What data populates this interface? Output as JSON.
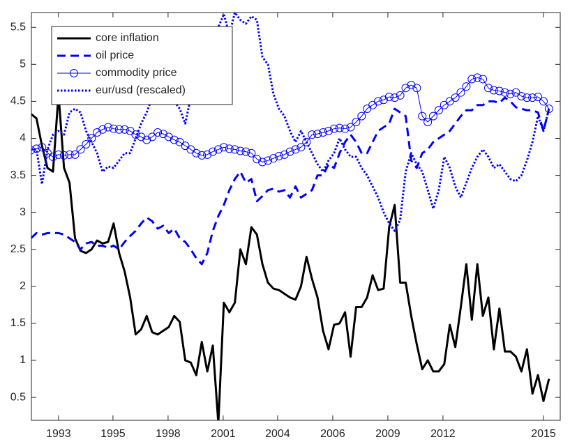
{
  "chart_data": {
    "type": "line",
    "x": [
      1991.75,
      1992,
      1992.25,
      1992.5,
      1992.75,
      1993,
      1993.25,
      1993.5,
      1993.75,
      1994,
      1994.25,
      1994.5,
      1994.75,
      1995,
      1995.25,
      1995.5,
      1995.75,
      1996,
      1996.25,
      1996.5,
      1996.75,
      1997,
      1997.25,
      1997.5,
      1997.75,
      1998,
      1998.25,
      1998.5,
      1998.75,
      1999,
      1999.25,
      1999.5,
      1999.75,
      2000,
      2000.25,
      2000.5,
      2000.75,
      2001,
      2001.25,
      2001.5,
      2001.75,
      2002,
      2002.25,
      2002.5,
      2002.75,
      2003,
      2003.25,
      2003.5,
      2003.75,
      2004,
      2004.25,
      2004.5,
      2004.75,
      2005,
      2005.25,
      2005.5,
      2005.75,
      2006,
      2006.25,
      2006.5,
      2006.75,
      2007,
      2007.25,
      2007.5,
      2007.75,
      2008,
      2008.25,
      2008.5,
      2008.75,
      2009,
      2009.25,
      2009.5,
      2009.75,
      2010,
      2010.25,
      2010.5,
      2010.75,
      2011,
      2011.25,
      2011.5,
      2011.75,
      2012,
      2012.25,
      2012.5,
      2012.75,
      2013,
      2013.25,
      2013.5,
      2013.75,
      2014,
      2014.25,
      2014.5,
      2014.75,
      2015,
      2015.25
    ],
    "series": [
      {
        "name": "core inflation",
        "color": "#000000",
        "line_style": "solid",
        "line_width": 3,
        "values": [
          4.33,
          4.27,
          3.9,
          3.6,
          3.55,
          4.6,
          3.6,
          3.4,
          2.65,
          2.48,
          2.45,
          2.5,
          2.62,
          2.58,
          2.6,
          2.85,
          2.45,
          2.2,
          1.85,
          1.35,
          1.42,
          1.6,
          1.38,
          1.35,
          1.4,
          1.45,
          1.6,
          1.52,
          1.0,
          0.97,
          0.8,
          1.25,
          0.85,
          1.2,
          0.15,
          1.78,
          1.65,
          1.78,
          2.5,
          2.3,
          2.8,
          2.7,
          2.3,
          2.05,
          1.97,
          1.95,
          1.9,
          1.85,
          1.82,
          2.0,
          2.4,
          2.1,
          1.85,
          1.4,
          1.15,
          1.48,
          1.5,
          1.65,
          1.05,
          1.72,
          1.72,
          1.85,
          2.15,
          1.95,
          1.97,
          2.8,
          3.1,
          2.05,
          2.05,
          1.6,
          1.22,
          0.88,
          1.0,
          0.85,
          0.85,
          0.95,
          1.48,
          1.18,
          1.72,
          2.3,
          1.55,
          2.3,
          1.6,
          1.85,
          1.15,
          1.7,
          1.12,
          1.12,
          1.05,
          0.85,
          1.15,
          0.55,
          0.8,
          0.45,
          0.75
        ]
      },
      {
        "name": "oil price",
        "color": "#0000ff",
        "line_style": "dashed",
        "line_width": 3,
        "values": [
          2.65,
          2.72,
          2.7,
          2.72,
          2.72,
          2.72,
          2.7,
          2.65,
          2.6,
          2.5,
          2.58,
          2.6,
          2.55,
          2.55,
          2.52,
          2.55,
          2.5,
          2.6,
          2.68,
          2.75,
          2.85,
          2.93,
          2.88,
          2.78,
          2.82,
          2.72,
          2.78,
          2.65,
          2.6,
          2.5,
          2.38,
          2.3,
          2.45,
          2.75,
          2.95,
          3.1,
          3.3,
          3.45,
          3.55,
          3.4,
          3.45,
          3.15,
          3.22,
          3.3,
          3.32,
          3.28,
          3.3,
          3.2,
          3.35,
          3.2,
          3.25,
          3.3,
          3.5,
          3.5,
          3.65,
          3.6,
          3.8,
          3.95,
          4.05,
          3.95,
          3.8,
          3.8,
          3.95,
          4.1,
          4.15,
          4.2,
          4.4,
          4.35,
          4.3,
          3.7,
          3.6,
          3.8,
          3.85,
          3.95,
          4.0,
          4.05,
          4.1,
          4.2,
          4.3,
          4.38,
          4.38,
          4.45,
          4.45,
          4.5,
          4.5,
          4.48,
          4.55,
          4.5,
          4.42,
          4.4,
          4.38,
          4.38,
          4.35,
          4.1,
          4.4
        ]
      },
      {
        "name": "commodity price",
        "color": "#0000ff",
        "line_style": "solid",
        "line_width": 1,
        "marker": "o",
        "values": [
          3.84,
          3.86,
          3.88,
          3.8,
          3.75,
          3.78,
          3.77,
          3.78,
          3.78,
          3.85,
          3.92,
          4.0,
          4.08,
          4.12,
          4.15,
          4.13,
          4.12,
          4.12,
          4.1,
          4.05,
          4.02,
          3.98,
          4.02,
          4.08,
          4.06,
          4.02,
          3.98,
          3.95,
          3.9,
          3.85,
          3.8,
          3.77,
          3.78,
          3.82,
          3.85,
          3.88,
          3.86,
          3.85,
          3.83,
          3.82,
          3.8,
          3.72,
          3.68,
          3.7,
          3.73,
          3.76,
          3.78,
          3.82,
          3.85,
          3.88,
          3.95,
          4.05,
          4.06,
          4.08,
          4.1,
          4.13,
          4.14,
          4.13,
          4.15,
          4.22,
          4.3,
          4.4,
          4.45,
          4.5,
          4.52,
          4.56,
          4.55,
          4.58,
          4.68,
          4.72,
          4.68,
          4.3,
          4.22,
          4.3,
          4.38,
          4.45,
          4.5,
          4.55,
          4.62,
          4.7,
          4.8,
          4.82,
          4.8,
          4.68,
          4.65,
          4.64,
          4.62,
          4.6,
          4.62,
          4.57,
          4.55,
          4.55,
          4.56,
          4.5,
          4.4
        ]
      },
      {
        "name": "eur/usd (rescaled)",
        "color": "#0000ff",
        "line_style": "dotted",
        "line_width": 3,
        "values": [
          3.85,
          3.85,
          3.38,
          3.85,
          4.05,
          4.1,
          4.05,
          4.35,
          4.4,
          4.35,
          4.1,
          3.95,
          3.8,
          3.55,
          3.62,
          3.6,
          3.7,
          3.8,
          3.8,
          4.0,
          4.2,
          4.35,
          4.55,
          4.5,
          4.6,
          4.55,
          4.5,
          4.4,
          4.2,
          4.55,
          4.6,
          4.8,
          5.0,
          5.3,
          5.5,
          5.68,
          5.4,
          5.7,
          5.6,
          5.55,
          5.65,
          5.6,
          5.1,
          5.0,
          4.6,
          4.4,
          4.3,
          4.1,
          3.95,
          4.1,
          3.95,
          3.8,
          3.65,
          3.55,
          3.7,
          3.8,
          4.0,
          3.85,
          3.75,
          3.75,
          3.6,
          3.5,
          3.35,
          3.2,
          3.0,
          2.85,
          2.75,
          2.9,
          3.55,
          3.8,
          3.65,
          3.55,
          3.3,
          3.05,
          3.3,
          3.75,
          3.6,
          3.35,
          3.2,
          3.4,
          3.6,
          3.75,
          3.85,
          3.75,
          3.6,
          3.65,
          3.55,
          3.45,
          3.42,
          3.5,
          3.7,
          3.95,
          4.3,
          4.1,
          4.4
        ]
      }
    ],
    "xlim": [
      1991.77,
      2015.76
    ],
    "xticks": [
      {
        "value": 1993.0,
        "label": "1993"
      },
      {
        "value": 1995.47,
        "label": "1995"
      },
      {
        "value": 1997.97,
        "label": "1998"
      },
      {
        "value": 2000.47,
        "label": "2001"
      },
      {
        "value": 2002.94,
        "label": "2004"
      },
      {
        "value": 2005.44,
        "label": "2006"
      },
      {
        "value": 2007.94,
        "label": "2009"
      },
      {
        "value": 2010.44,
        "label": "2012"
      },
      {
        "value": 2015.0,
        "label": "2015"
      }
    ],
    "ylim": [
      0.19,
      5.7
    ],
    "yticks": [
      0.5,
      1,
      1.5,
      2,
      2.5,
      3,
      3.5,
      4,
      4.5,
      5,
      5.5
    ],
    "grid": false,
    "legend": "upper left"
  }
}
